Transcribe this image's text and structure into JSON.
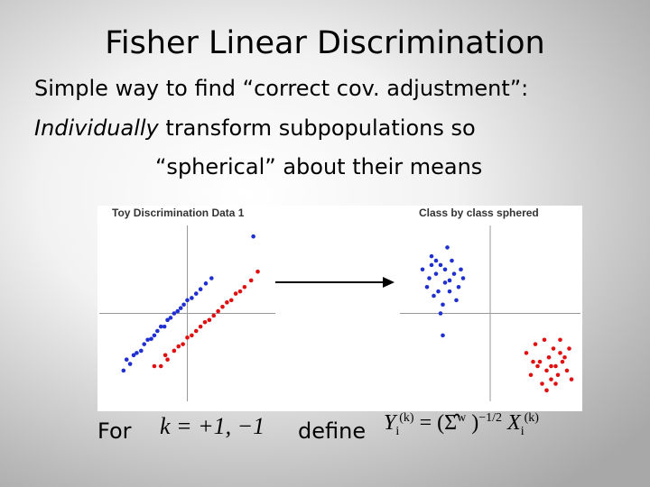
{
  "slide": {
    "title": "Fisher Linear Discrimination",
    "line1": "Simple way to find “correct cov. adjustment”:",
    "line2_em": "Individually",
    "line2_rest": "transform subpopulations so",
    "line3": "“spherical” about their means"
  },
  "formula": {
    "for": "For",
    "k": "k = +1, −1",
    "define": "define",
    "lhs": "Y",
    "lhs_sub": "i",
    "lhs_sup": "(k)",
    "eq": "=",
    "open": "(",
    "sigma": "Σ̂",
    "sigma_sup": "w",
    "close": ")",
    "power": "−1/2",
    "rhs": "X",
    "rhs_sub": "i",
    "rhs_sup": "(k)"
  },
  "chart_data": [
    {
      "type": "scatter",
      "title": "Toy Discrimination Data 1",
      "xlim": [
        -2,
        2
      ],
      "ylim": [
        -2,
        2
      ],
      "series": [
        {
          "color": "#1f2fd0",
          "x": [
            -1.45,
            -1.38,
            -1.3,
            -1.22,
            -1.15,
            -1.05,
            -0.98,
            -0.9,
            -0.82,
            -0.75,
            -0.68,
            -0.6,
            -0.52,
            -0.45,
            -0.38,
            -0.3,
            -0.22,
            -0.15,
            -0.08,
            0.0,
            0.1,
            0.2,
            0.3,
            0.42,
            0.55,
            1.5
          ],
          "values": [
            -1.3,
            -1.05,
            -1.15,
            -0.95,
            -0.9,
            -0.85,
            -0.7,
            -0.6,
            -0.58,
            -0.5,
            -0.4,
            -0.3,
            -0.3,
            -0.15,
            -0.1,
            0.0,
            0.05,
            0.12,
            0.2,
            0.3,
            0.35,
            0.45,
            0.55,
            0.68,
            0.8,
            1.75
          ]
        },
        {
          "color": "#e01010",
          "x": [
            -0.6,
            -0.5,
            -0.45,
            -0.3,
            -0.2,
            -0.1,
            0.0,
            0.1,
            0.2,
            0.3,
            0.4,
            0.5,
            0.6,
            0.7,
            0.8,
            0.9,
            1.0,
            1.1,
            1.2,
            1.3,
            1.45,
            1.6,
            -0.75
          ],
          "values": [
            -1.2,
            -0.95,
            -1.05,
            -0.85,
            -0.75,
            -0.7,
            -0.55,
            -0.5,
            -0.4,
            -0.3,
            -0.2,
            -0.15,
            -0.05,
            0.05,
            0.15,
            0.25,
            0.3,
            0.45,
            0.5,
            0.6,
            0.75,
            0.95,
            -1.2
          ]
        }
      ]
    },
    {
      "type": "scatter",
      "title": "Class by class sphered",
      "xlim": [
        -2,
        2
      ],
      "ylim": [
        -2,
        2
      ],
      "series": [
        {
          "color": "#1f2fd0",
          "x": [
            -1.5,
            -1.4,
            -1.3,
            -1.25,
            -1.2,
            -1.1,
            -1.05,
            -1.0,
            -0.95,
            -0.9,
            -0.8,
            -0.7,
            -0.65,
            -1.35,
            -1.15,
            -0.85,
            -1.0,
            -1.2,
            -0.75,
            -1.1,
            -0.9,
            -1.3,
            -0.6,
            -1.05
          ],
          "values": [
            1.0,
            0.6,
            1.3,
            0.4,
            0.9,
            1.1,
            0.2,
            0.7,
            1.5,
            0.5,
            0.9,
            0.6,
            1.0,
            0.8,
            0.5,
            1.2,
            1.0,
            1.2,
            0.3,
            0.0,
            0.75,
            1.1,
            0.8,
            -0.5
          ]
        },
        {
          "color": "#e01010",
          "x": [
            0.8,
            0.9,
            1.0,
            1.1,
            1.15,
            1.2,
            1.25,
            1.3,
            1.35,
            1.4,
            1.45,
            1.5,
            1.55,
            1.6,
            1.7,
            1.75,
            1.8,
            1.05,
            1.25,
            1.45,
            1.65,
            1.35,
            0.95,
            1.55
          ],
          "values": [
            -0.9,
            -1.4,
            -0.7,
            -1.1,
            -1.6,
            -0.6,
            -1.3,
            -1.0,
            -1.5,
            -0.8,
            -1.2,
            -1.4,
            -0.9,
            -1.1,
            -1.3,
            -0.8,
            -1.5,
            -1.2,
            -1.75,
            -1.6,
            -1.0,
            -1.2,
            -1.1,
            -0.6
          ]
        }
      ]
    }
  ]
}
